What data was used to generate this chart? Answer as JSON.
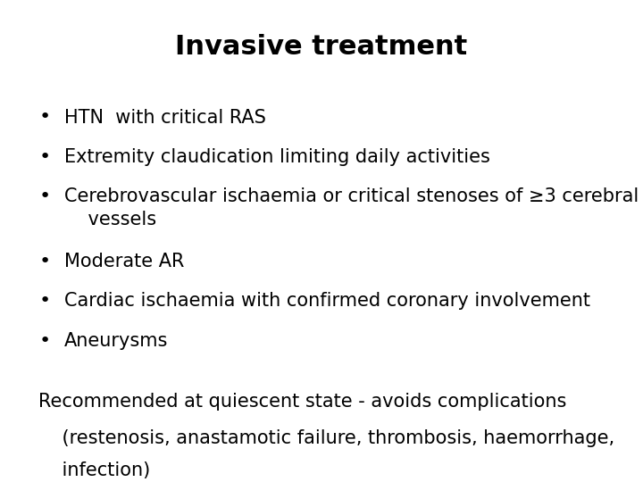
{
  "title": "Invasive treatment",
  "title_fontsize": 22,
  "title_fontweight": "bold",
  "bullet_items": [
    "HTN  with critical RAS",
    "Extremity claudication limiting daily activities",
    "Cerebrovascular ischaemia or critical stenoses of ≥3 cerebral\n    vessels",
    "Moderate AR",
    "Cardiac ischaemia with confirmed coronary involvement",
    "Aneurysms"
  ],
  "footer_line1": "Recommended at quiescent state - avoids complications",
  "footer_line2": "    (restenosis, anastamotic failure, thrombosis, haemorrhage,",
  "footer_line3": "    infection)",
  "body_fontsize": 15,
  "footer_fontsize": 15,
  "bullet_char": "•",
  "text_color": "#000000",
  "background_color": "#ffffff",
  "font_family": "DejaVu Sans"
}
